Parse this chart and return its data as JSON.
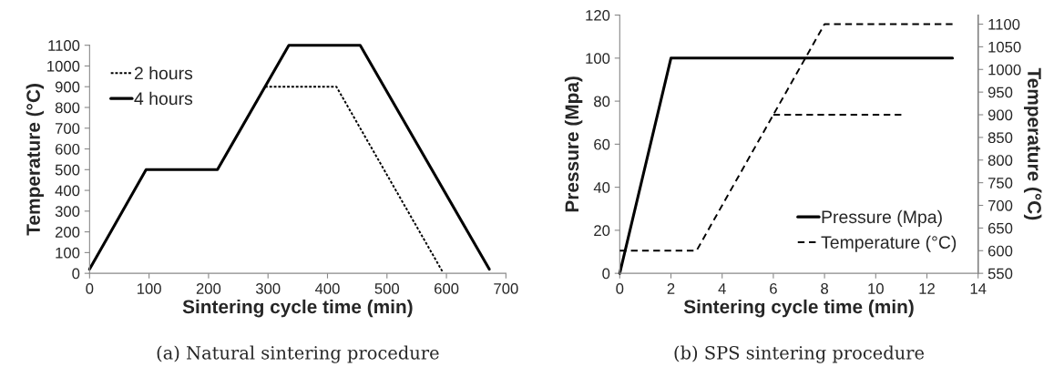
{
  "chart_data": [
    {
      "type": "line",
      "xlabel": "Sintering cycle time (min)",
      "ylabel": "Temperature (°C)",
      "xlim": [
        0,
        700
      ],
      "xticks": [
        0,
        100,
        200,
        300,
        400,
        500,
        600,
        700
      ],
      "ylim": [
        0,
        1100
      ],
      "yticks": [
        0,
        100,
        200,
        300,
        400,
        500,
        600,
        700,
        800,
        900,
        1000,
        1100
      ],
      "legend": "top left",
      "grid": false,
      "marker": "none",
      "series": [
        {
          "name": "2 hours",
          "color": "#000000",
          "line_style": "dotted",
          "x": [
            295,
            415,
            593
          ],
          "values": [
            900,
            900,
            10
          ]
        },
        {
          "name": "4 hours",
          "color": "#000000",
          "line_style": "solid",
          "x": [
            0,
            95,
            215,
            335,
            455,
            672
          ],
          "values": [
            20,
            500,
            500,
            1100,
            1100,
            20
          ]
        }
      ],
      "annotations": [
        "(a) Natural sintering procedure"
      ]
    },
    {
      "type": "line",
      "xlabel": "Sintering cycle time (min)",
      "ylabel": "Pressure (Mpa)",
      "y2label": "Temperature (°C)",
      "xlim": [
        0,
        14
      ],
      "xticks": [
        0,
        2,
        4,
        6,
        8,
        10,
        12,
        14
      ],
      "ylim": [
        0,
        120
      ],
      "yticks": [
        0,
        20,
        40,
        60,
        80,
        100,
        120
      ],
      "y2lim": [
        550,
        1120
      ],
      "y2ticks": [
        550,
        600,
        650,
        700,
        750,
        800,
        850,
        900,
        950,
        1000,
        1050,
        1100
      ],
      "legend": "bottom right",
      "grid": false,
      "marker": "none",
      "series": [
        {
          "name": "Pressure (Mpa)",
          "color": "#000000",
          "line_style": "solid",
          "x": [
            0,
            2,
            13
          ],
          "values": [
            0,
            100,
            100
          ]
        },
        {
          "name": "Temperature (°C)",
          "color": "#000000",
          "line_style": "dashed",
          "axis": "y2",
          "x": [
            0,
            3,
            8,
            13
          ],
          "values": [
            600,
            600,
            1100,
            1100
          ]
        },
        {
          "color": "#000000",
          "line_style": "dashed",
          "axis": "y2",
          "x": [
            6,
            11
          ],
          "values": [
            900,
            900
          ]
        }
      ],
      "annotations": [
        "(b) SPS sintering procedure"
      ]
    }
  ]
}
